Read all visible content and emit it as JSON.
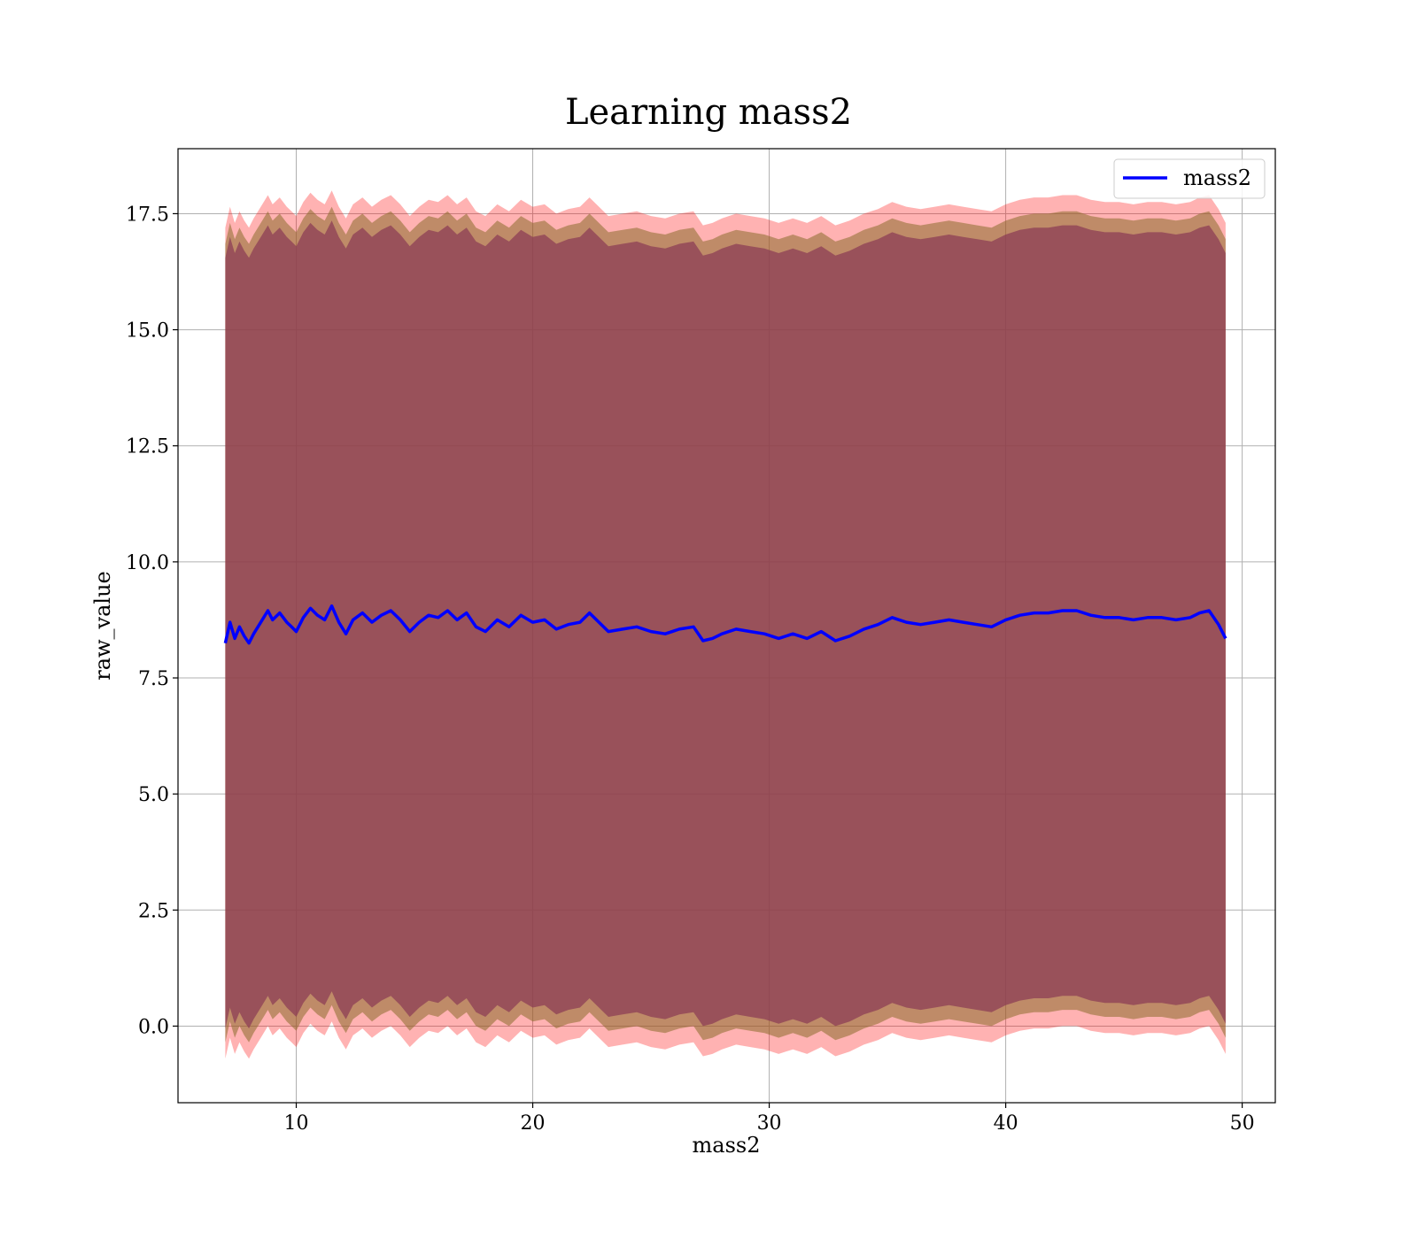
{
  "chart_data": {
    "type": "area",
    "title": "Learning mass2",
    "xlabel": "mass2",
    "ylabel": "raw_value",
    "xlim": [
      5,
      51.4
    ],
    "ylim": [
      -1.65,
      18.9
    ],
    "x_ticks": [
      10,
      20,
      30,
      40,
      50
    ],
    "x_tick_labels": [
      "10",
      "20",
      "30",
      "40",
      "50"
    ],
    "y_ticks": [
      0.0,
      2.5,
      5.0,
      7.5,
      10.0,
      12.5,
      15.0,
      17.5
    ],
    "y_tick_labels": [
      "0.0",
      "2.5",
      "5.0",
      "7.5",
      "10.0",
      "12.5",
      "15.0",
      "17.5"
    ],
    "grid": true,
    "legend": {
      "position": "top-right",
      "entries": [
        "mass2"
      ]
    },
    "colors": {
      "line": "#0000ff",
      "outer_band": "#ff0000",
      "middle_band": "#8b6b2b",
      "inner_band": "#8b3a55"
    },
    "series": [
      {
        "name": "mass2",
        "x": [
          7.0,
          7.2,
          7.4,
          7.6,
          7.8,
          8.0,
          8.2,
          8.5,
          8.8,
          9.0,
          9.3,
          9.6,
          9.8,
          10.0,
          10.3,
          10.6,
          10.9,
          11.2,
          11.5,
          11.8,
          12.1,
          12.4,
          12.8,
          13.2,
          13.6,
          14.0,
          14.4,
          14.8,
          15.2,
          15.6,
          16.0,
          16.4,
          16.8,
          17.2,
          17.6,
          18.0,
          18.5,
          19.0,
          19.5,
          20.0,
          20.5,
          21.0,
          21.5,
          22.0,
          22.4,
          22.8,
          23.2,
          23.8,
          24.4,
          25.0,
          25.6,
          26.2,
          26.8,
          27.2,
          27.6,
          28.0,
          28.6,
          29.2,
          29.8,
          30.4,
          31.0,
          31.6,
          32.2,
          32.8,
          33.4,
          34.0,
          34.6,
          35.2,
          35.8,
          36.4,
          37.0,
          37.6,
          38.2,
          38.8,
          39.4,
          40.0,
          40.6,
          41.2,
          41.8,
          42.4,
          43.0,
          43.6,
          44.2,
          44.8,
          45.4,
          46.0,
          46.6,
          47.2,
          47.8,
          48.2,
          48.6,
          49.0,
          49.3
        ],
        "values": [
          8.25,
          8.7,
          8.35,
          8.6,
          8.4,
          8.25,
          8.45,
          8.7,
          8.95,
          8.75,
          8.9,
          8.7,
          8.6,
          8.5,
          8.8,
          9.0,
          8.85,
          8.75,
          9.05,
          8.7,
          8.45,
          8.75,
          8.9,
          8.7,
          8.85,
          8.95,
          8.75,
          8.5,
          8.7,
          8.85,
          8.8,
          8.95,
          8.75,
          8.9,
          8.6,
          8.5,
          8.75,
          8.6,
          8.85,
          8.7,
          8.75,
          8.55,
          8.65,
          8.7,
          8.9,
          8.7,
          8.5,
          8.55,
          8.6,
          8.5,
          8.45,
          8.55,
          8.6,
          8.3,
          8.35,
          8.45,
          8.55,
          8.5,
          8.45,
          8.35,
          8.45,
          8.35,
          8.5,
          8.3,
          8.4,
          8.55,
          8.65,
          8.8,
          8.7,
          8.65,
          8.7,
          8.75,
          8.7,
          8.65,
          8.6,
          8.75,
          8.85,
          8.9,
          8.9,
          8.95,
          8.95,
          8.85,
          8.8,
          8.8,
          8.75,
          8.8,
          8.8,
          8.75,
          8.8,
          8.9,
          8.95,
          8.65,
          8.35
        ]
      }
    ],
    "bands": [
      {
        "offset_low": -8.95,
        "offset_high": 8.95
      },
      {
        "offset_low": -8.6,
        "offset_high": 8.6
      },
      {
        "offset_low": -8.3,
        "offset_high": 8.3
      }
    ]
  }
}
